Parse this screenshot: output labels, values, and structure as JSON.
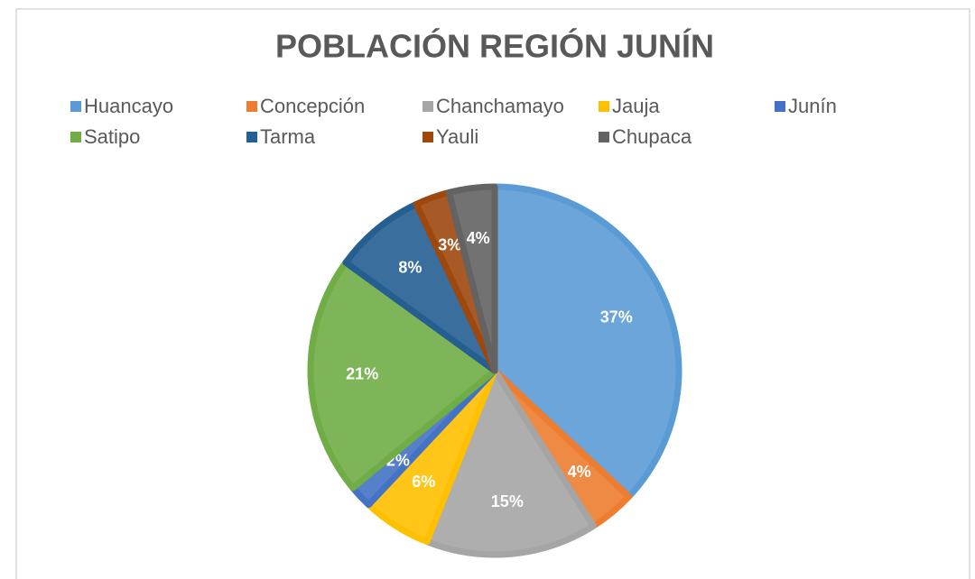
{
  "chart_data": {
    "type": "pie",
    "title": "POBLACIÓN REGIÓN JUNÍN",
    "categories": [
      "Huancayo",
      "Concepción",
      "Chanchamayo",
      "Jauja",
      "Junín",
      "Satipo",
      "Tarma",
      "Yauli",
      "Chupaca"
    ],
    "values": [
      37,
      4,
      15,
      6,
      2,
      21,
      8,
      3,
      4
    ],
    "value_labels": [
      "37%",
      "4%",
      "15%",
      "6%",
      "2%",
      "21%",
      "8%",
      "3%",
      "4%"
    ],
    "colors": [
      "#5b9bd5",
      "#ed7d31",
      "#a5a5a5",
      "#ffc000",
      "#4472c4",
      "#70ad47",
      "#255e91",
      "#9e480e",
      "#636363"
    ],
    "legend": "top"
  }
}
